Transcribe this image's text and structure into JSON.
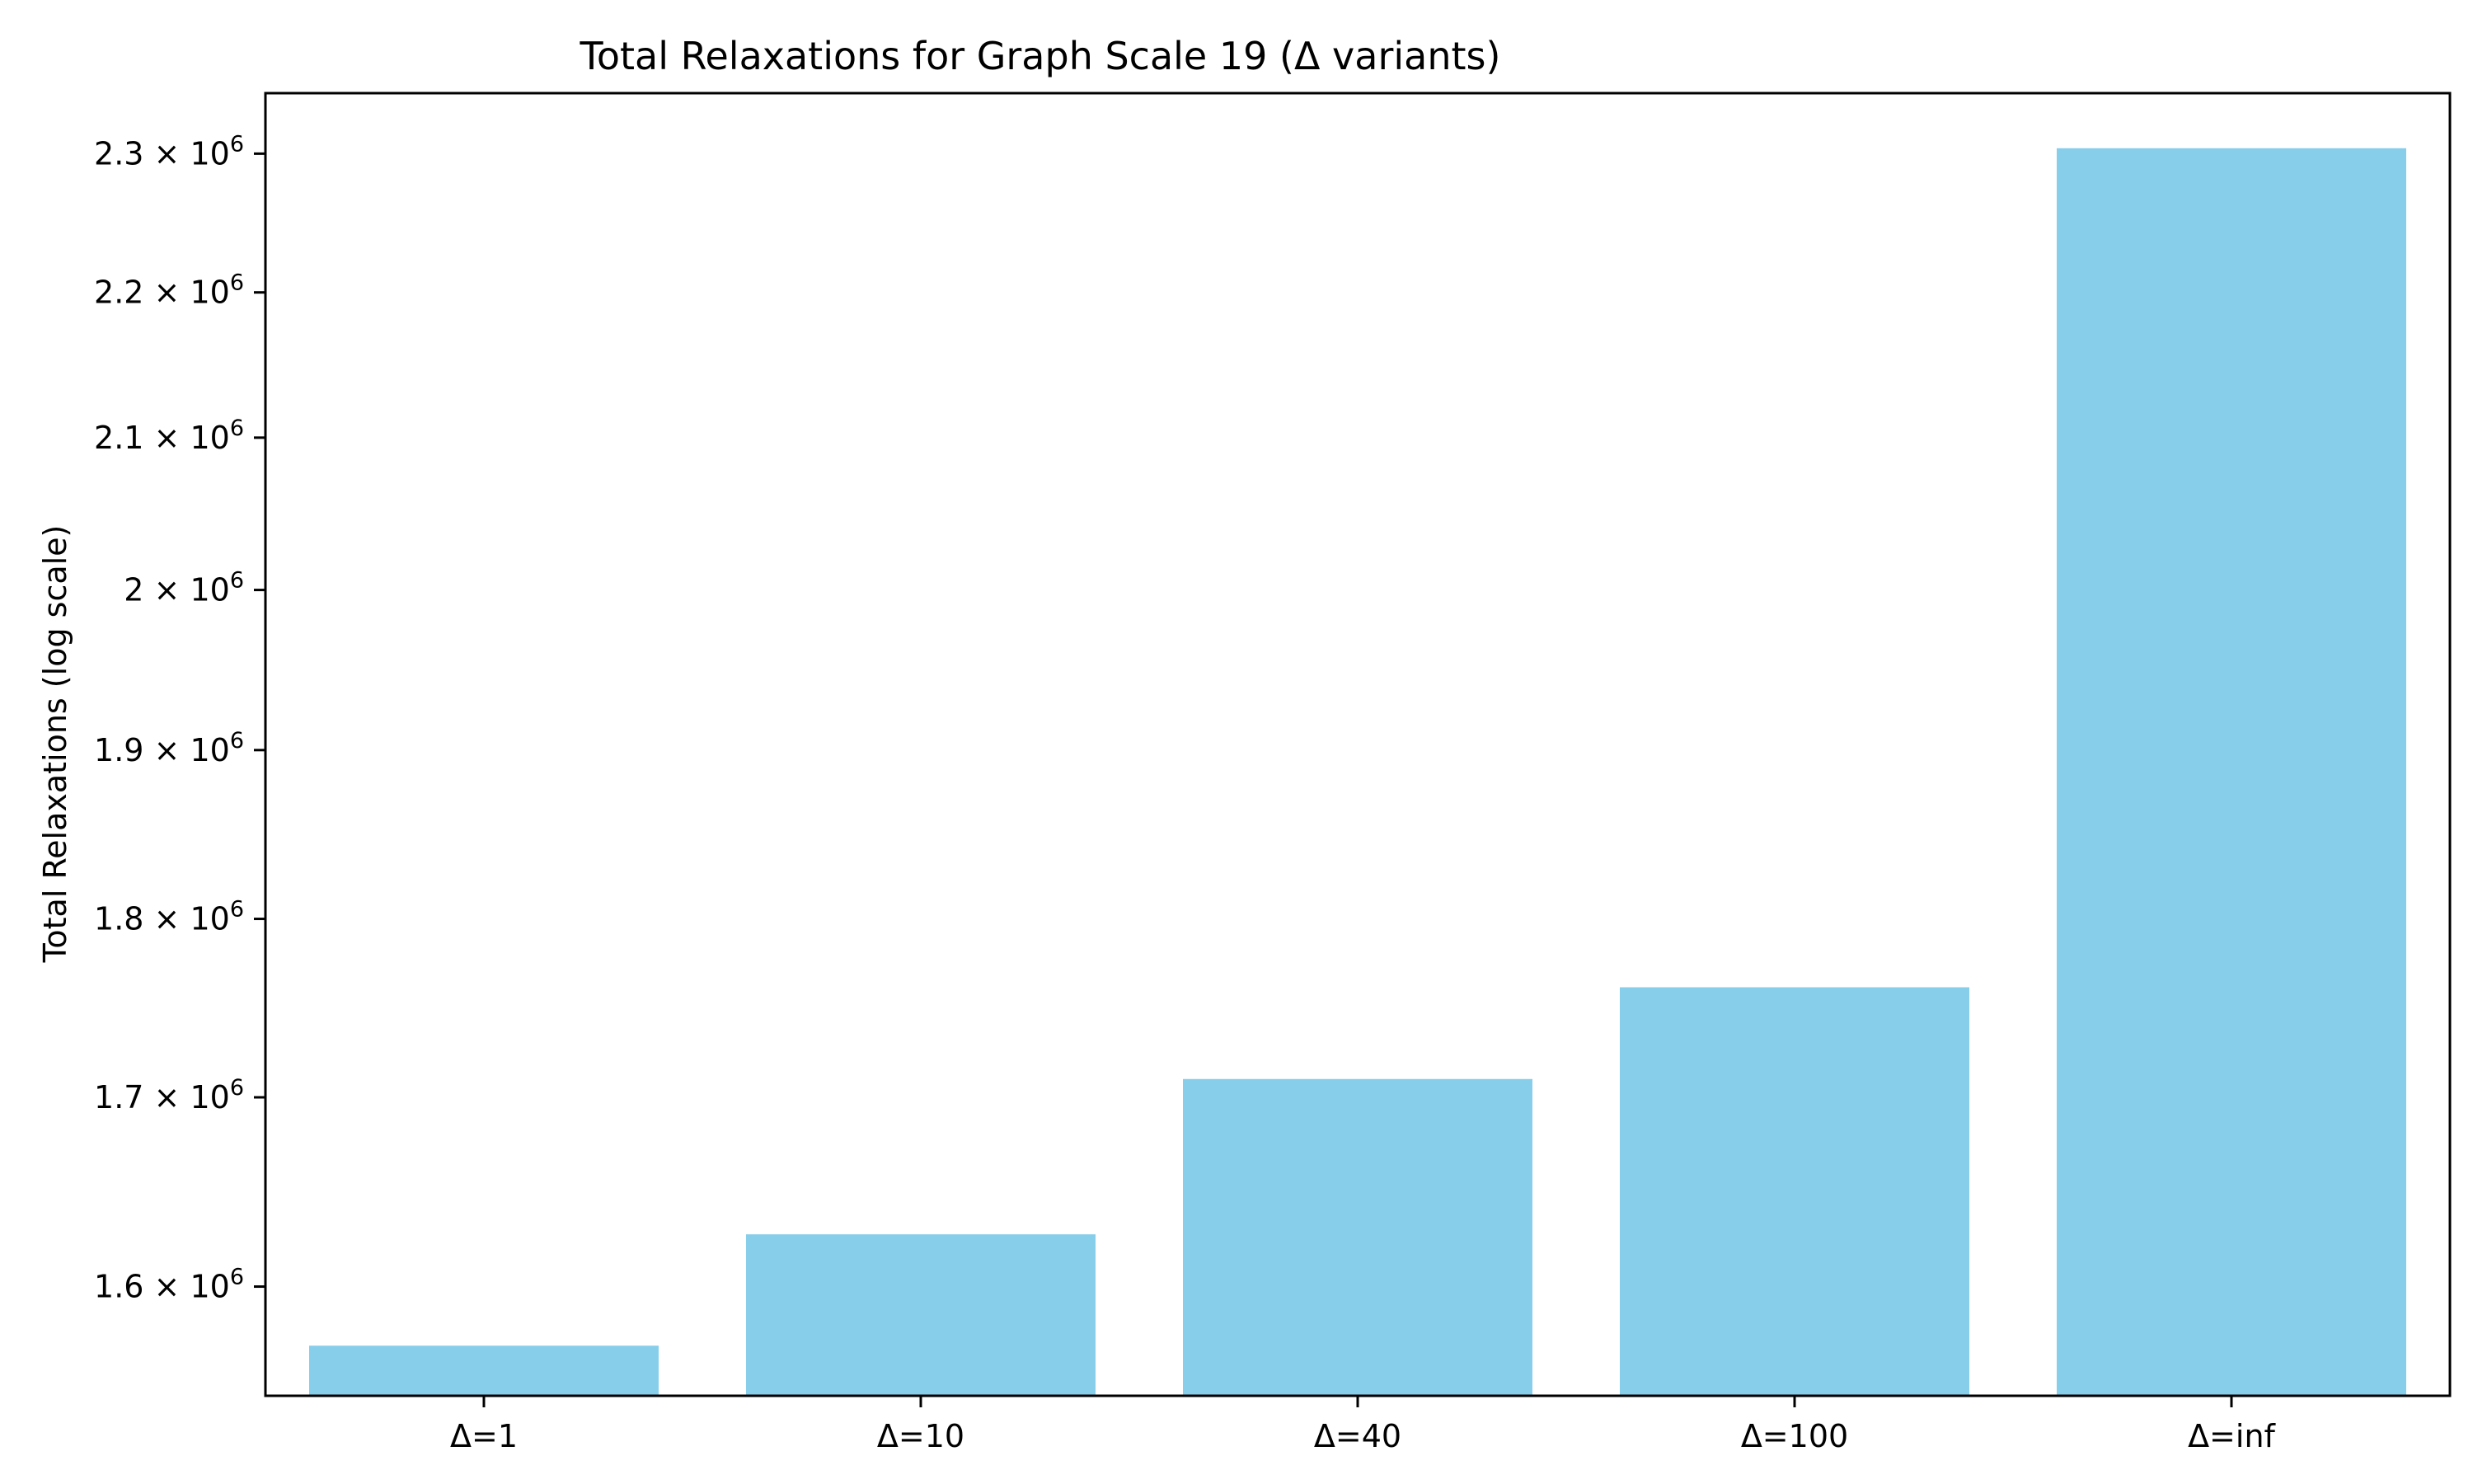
{
  "chart_data": {
    "type": "bar",
    "title": "Total Relaxations for Graph Scale 19 (Δ variants)",
    "xlabel": "",
    "ylabel": "Total Relaxations (log scale)",
    "yscale": "log",
    "ylim": [
      1545000,
      2345000
    ],
    "categories": [
      "Δ=1",
      "Δ=10",
      "Δ=40",
      "Δ=100",
      "Δ=inf"
    ],
    "values": [
      1570000,
      1627000,
      1710000,
      1761000,
      2304000
    ],
    "yticks": [
      {
        "value": 1600000,
        "mantissa": "1.6",
        "base": "10",
        "exp": "6"
      },
      {
        "value": 1700000,
        "mantissa": "1.7",
        "base": "10",
        "exp": "6"
      },
      {
        "value": 1800000,
        "mantissa": "1.8",
        "base": "10",
        "exp": "6"
      },
      {
        "value": 1900000,
        "mantissa": "1.9",
        "base": "10",
        "exp": "6"
      },
      {
        "value": 2000000,
        "mantissa": "2",
        "base": "10",
        "exp": "6"
      },
      {
        "value": 2100000,
        "mantissa": "2.1",
        "base": "10",
        "exp": "6"
      },
      {
        "value": 2200000,
        "mantissa": "2.2",
        "base": "10",
        "exp": "6"
      },
      {
        "value": 2300000,
        "mantissa": "2.3",
        "base": "10",
        "exp": "6"
      }
    ],
    "times_sign": "×",
    "bar_color": "#87ceeb",
    "grid": false,
    "legend": "none"
  }
}
